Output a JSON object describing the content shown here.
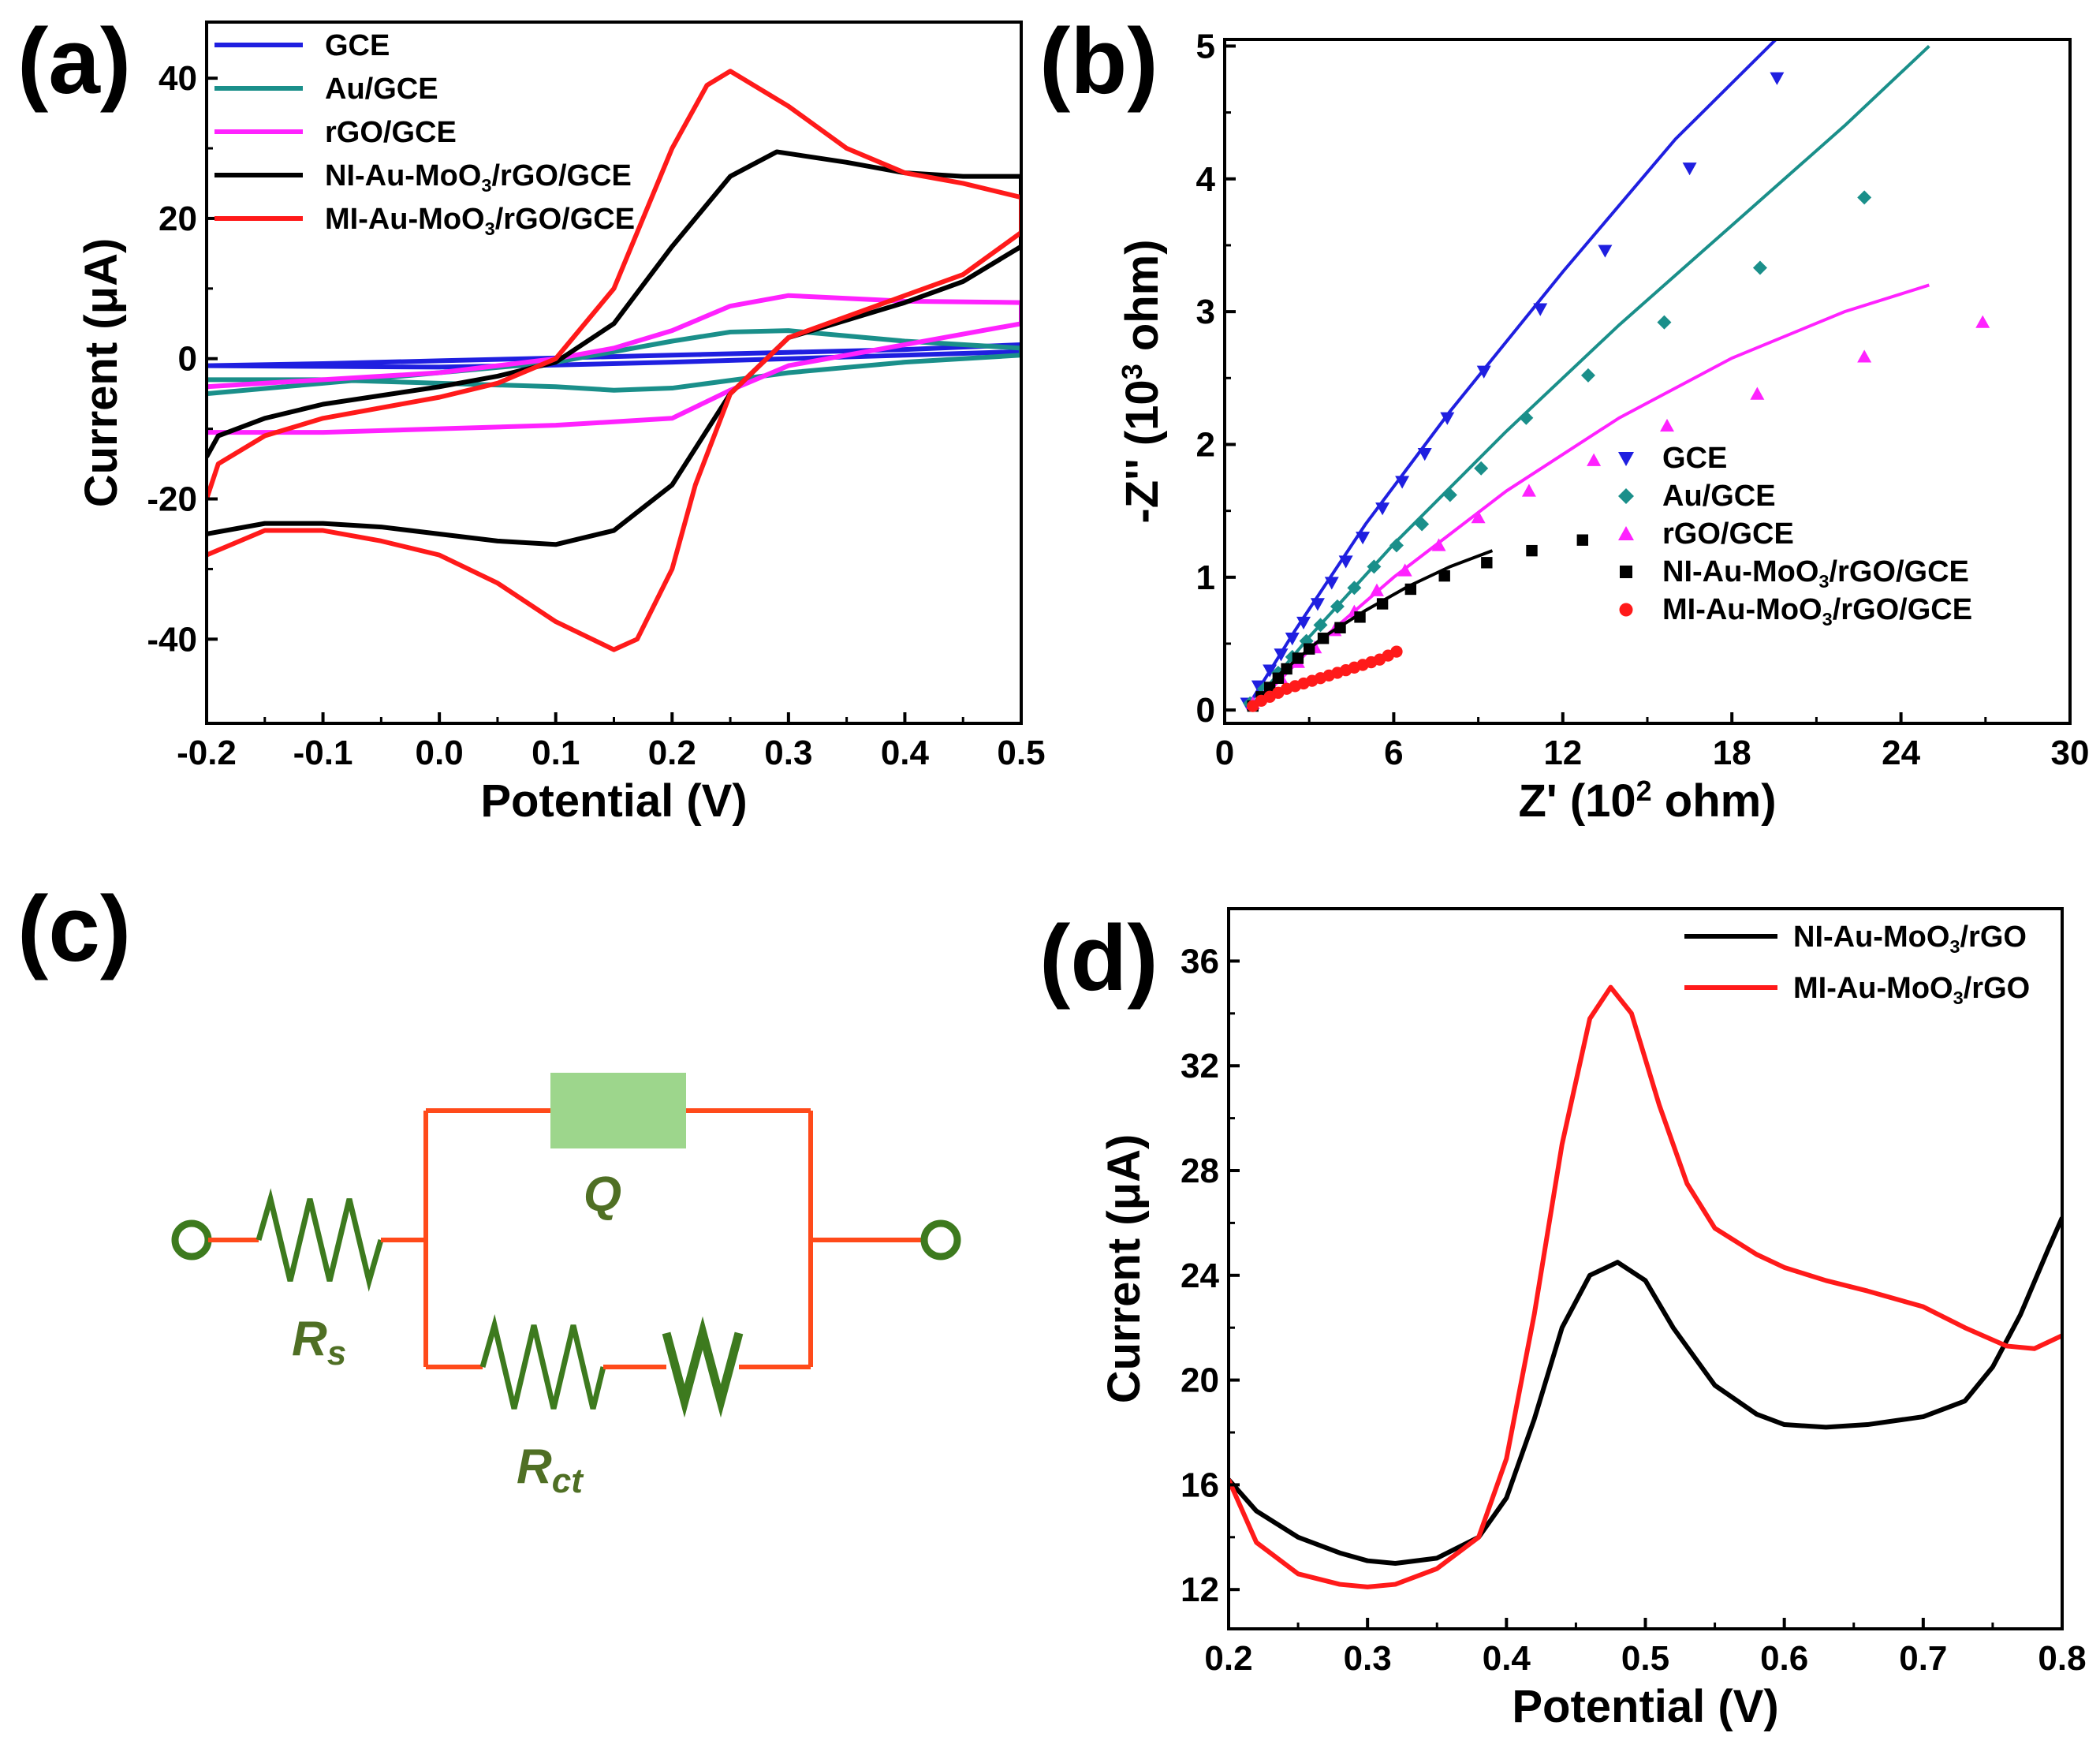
{
  "colors": {
    "GCE": "#1f1fe0",
    "AuGCE": "#1a8f8a",
    "rGOGCE": "#ff22ff",
    "NI": "#000000",
    "MI": "#ff1a1a",
    "wire": "#ff4a1a",
    "component": "#3d7a1e",
    "capacitor": "#9dd68c"
  },
  "panels": {
    "a": {
      "label": "(a)"
    },
    "b": {
      "label": "(b)"
    },
    "c": {
      "label": "(c)"
    },
    "d": {
      "label": "(d)"
    }
  },
  "chart_data": [
    {
      "id": "a",
      "type": "line",
      "title": "",
      "xlabel": "Potential (V)",
      "ylabel": "Current (μA)",
      "xlim": [
        -0.2,
        0.5
      ],
      "ylim": [
        -52,
        48
      ],
      "xticks": [
        -0.2,
        -0.1,
        0.0,
        0.1,
        0.2,
        0.3,
        0.4,
        0.5
      ],
      "xticklabels": [
        "-0.2",
        "-0.1",
        "0.0",
        "0.1",
        "0.2",
        "0.3",
        "0.4",
        "0.5"
      ],
      "yticks": [
        -40,
        -20,
        0,
        20,
        40
      ],
      "yticklabels": [
        "-40",
        "-20",
        "0",
        "20",
        "40"
      ],
      "legend_position": "top-left",
      "series": [
        {
          "name": "GCE",
          "color_key": "GCE",
          "legend": [
            "GCE",
            "",
            ""
          ],
          "x": [
            -0.2,
            -0.1,
            0.0,
            0.1,
            0.2,
            0.3,
            0.4,
            0.5,
            0.5,
            0.4,
            0.3,
            0.2,
            0.1,
            0.0,
            -0.1,
            -0.2
          ],
          "y": [
            -1.0,
            -0.7,
            -0.3,
            0.1,
            0.5,
            0.9,
            1.3,
            2.0,
            1.0,
            0.5,
            0.0,
            -0.5,
            -0.9,
            -1.2,
            -1.1,
            -1.0
          ]
        },
        {
          "name": "Au/GCE",
          "color_key": "AuGCE",
          "legend": [
            "Au/GCE",
            "",
            ""
          ],
          "x": [
            -0.2,
            -0.1,
            0.0,
            0.1,
            0.2,
            0.25,
            0.3,
            0.4,
            0.5,
            0.5,
            0.4,
            0.3,
            0.2,
            0.15,
            0.1,
            0.0,
            -0.1,
            -0.2
          ],
          "y": [
            -5.0,
            -3.5,
            -2.0,
            -0.5,
            2.5,
            3.8,
            4.0,
            2.5,
            1.5,
            0.5,
            -0.5,
            -2.0,
            -4.2,
            -4.5,
            -4.0,
            -3.5,
            -3.0,
            -3.0
          ]
        },
        {
          "name": "rGO/GCE",
          "color_key": "rGOGCE",
          "legend": [
            "rGO/GCE",
            "",
            ""
          ],
          "x": [
            -0.2,
            -0.1,
            0.0,
            0.05,
            0.1,
            0.15,
            0.2,
            0.25,
            0.3,
            0.4,
            0.5,
            0.5,
            0.4,
            0.3,
            0.25,
            0.2,
            0.1,
            0.0,
            -0.1,
            -0.2
          ],
          "y": [
            -4.0,
            -3.0,
            -2.0,
            -1.0,
            0.0,
            1.5,
            4.0,
            7.5,
            9.0,
            8.2,
            8.0,
            5.0,
            2.0,
            -1.0,
            -4.5,
            -8.5,
            -9.5,
            -10.0,
            -10.5,
            -10.5
          ]
        },
        {
          "name": "NI-Au-MoO3/rGO/GCE",
          "color_key": "NI",
          "legend": [
            "NI-Au-MoO",
            "3",
            "/rGO/GCE"
          ],
          "x": [
            -0.2,
            -0.19,
            -0.15,
            -0.1,
            0.0,
            0.05,
            0.1,
            0.15,
            0.2,
            0.25,
            0.29,
            0.35,
            0.4,
            0.45,
            0.5,
            0.5,
            0.45,
            0.4,
            0.3,
            0.25,
            0.2,
            0.15,
            0.1,
            0.05,
            0.0,
            -0.05,
            -0.1,
            -0.15,
            -0.2
          ],
          "y": [
            -14.0,
            -11.0,
            -8.5,
            -6.5,
            -4.0,
            -2.5,
            -0.5,
            5.0,
            16.0,
            26.0,
            29.5,
            28.0,
            26.5,
            26.0,
            26.0,
            16.0,
            11.0,
            8.0,
            3.0,
            -5.0,
            -18.0,
            -24.5,
            -26.5,
            -26.0,
            -25.0,
            -24.0,
            -23.5,
            -23.5,
            -25.0
          ]
        },
        {
          "name": "MI-Au-MoO3/rGO/GCE",
          "color_key": "MI",
          "legend": [
            "MI-Au-MoO",
            "3",
            "/rGO/GCE"
          ],
          "x": [
            -0.2,
            -0.19,
            -0.15,
            -0.1,
            0.0,
            0.05,
            0.1,
            0.15,
            0.2,
            0.23,
            0.25,
            0.3,
            0.35,
            0.4,
            0.45,
            0.5,
            0.5,
            0.45,
            0.4,
            0.3,
            0.25,
            0.22,
            0.2,
            0.17,
            0.15,
            0.1,
            0.05,
            0.0,
            -0.05,
            -0.1,
            -0.15,
            -0.2
          ],
          "y": [
            -20.0,
            -15.0,
            -11.0,
            -8.5,
            -5.5,
            -3.5,
            0.0,
            10.0,
            30.0,
            39.0,
            41.0,
            36.0,
            30.0,
            26.5,
            25.0,
            23.0,
            18.0,
            12.0,
            9.0,
            3.0,
            -5.0,
            -18.0,
            -30.0,
            -40.0,
            -41.5,
            -37.5,
            -32.0,
            -28.0,
            -26.0,
            -24.5,
            -24.5,
            -28.0
          ]
        }
      ]
    },
    {
      "id": "b",
      "type": "scatter",
      "title": "",
      "xlabel": "Z' (10² ohm)",
      "xlabel_parts": [
        "Z' (10",
        "2",
        " ohm)"
      ],
      "ylabel": "-Z'' (10³ ohm)",
      "ylabel_parts": [
        "-Z'' (10",
        "3",
        " ohm)"
      ],
      "xlim": [
        0,
        30
      ],
      "ylim": [
        -0.1,
        5.05
      ],
      "xticks": [
        0,
        6,
        12,
        18,
        24,
        30
      ],
      "xticklabels": [
        "0",
        "6",
        "12",
        "18",
        "24",
        "30"
      ],
      "yticks": [
        0,
        1,
        2,
        3,
        4,
        5
      ],
      "yticklabels": [
        "0",
        "1",
        "2",
        "3",
        "4",
        "5"
      ],
      "legend_position": "center-right",
      "series": [
        {
          "name": "GCE",
          "color_key": "GCE",
          "marker": "triangle-down",
          "legend": [
            "GCE",
            "",
            ""
          ],
          "x": [
            0.8,
            1.2,
            1.6,
            2.0,
            2.4,
            2.8,
            3.3,
            3.8,
            4.3,
            4.9,
            5.6,
            6.3,
            7.1,
            7.9,
            9.2,
            11.2,
            13.5,
            16.5,
            19.6
          ],
          "y": [
            0.05,
            0.18,
            0.3,
            0.42,
            0.54,
            0.66,
            0.8,
            0.96,
            1.12,
            1.3,
            1.52,
            1.72,
            1.93,
            2.2,
            2.55,
            3.02,
            3.46,
            4.08,
            4.76
          ],
          "fit_x": [
            0.8,
            2.5,
            5.0,
            8.0,
            12.0,
            16.0,
            19.8
          ],
          "fit_y": [
            0.02,
            0.6,
            1.4,
            2.25,
            3.3,
            4.3,
            5.1
          ]
        },
        {
          "name": "Au/GCE",
          "color_key": "AuGCE",
          "marker": "diamond",
          "legend": [
            "Au/GCE",
            "",
            ""
          ],
          "x": [
            0.9,
            1.4,
            1.9,
            2.4,
            2.9,
            3.4,
            4.0,
            4.6,
            5.3,
            6.1,
            7.0,
            8.0,
            9.1,
            10.7,
            12.9,
            15.6,
            19.0,
            22.7
          ],
          "y": [
            0.05,
            0.16,
            0.28,
            0.4,
            0.52,
            0.64,
            0.78,
            0.92,
            1.08,
            1.24,
            1.4,
            1.62,
            1.82,
            2.2,
            2.52,
            2.92,
            3.33,
            3.86
          ],
          "fit_x": [
            0.9,
            3.0,
            6.0,
            10.0,
            14.0,
            18.0,
            22.0,
            25.0
          ],
          "fit_y": [
            0.02,
            0.55,
            1.25,
            2.1,
            2.9,
            3.65,
            4.4,
            5.0
          ]
        },
        {
          "name": "rGO/GCE",
          "color_key": "rGOGCE",
          "marker": "triangle-up",
          "legend": [
            "rGO/GCE",
            "",
            ""
          ],
          "x": [
            1.0,
            1.5,
            2.0,
            2.6,
            3.2,
            3.9,
            4.6,
            5.4,
            6.4,
            7.6,
            9.0,
            10.8,
            13.1,
            15.7,
            18.9,
            22.7,
            26.9
          ],
          "y": [
            0.05,
            0.14,
            0.24,
            0.36,
            0.47,
            0.6,
            0.74,
            0.9,
            1.05,
            1.24,
            1.45,
            1.65,
            1.88,
            2.14,
            2.38,
            2.66,
            2.92
          ],
          "fit_x": [
            1.0,
            3.0,
            6.0,
            10.0,
            14.0,
            18.0,
            22.0,
            25.0
          ],
          "fit_y": [
            0.02,
            0.45,
            1.0,
            1.65,
            2.2,
            2.65,
            3.0,
            3.2
          ]
        },
        {
          "name": "NI-Au-MoO3/rGO/GCE",
          "color_key": "NI",
          "marker": "square",
          "legend": [
            "NI-Au-MoO",
            "3",
            "/rGO/GCE"
          ],
          "x": [
            1.0,
            1.3,
            1.6,
            1.9,
            2.2,
            2.6,
            3.0,
            3.5,
            4.1,
            4.8,
            5.6,
            6.6,
            7.8,
            9.3,
            10.9,
            12.7
          ],
          "y": [
            0.03,
            0.1,
            0.17,
            0.24,
            0.31,
            0.39,
            0.46,
            0.54,
            0.62,
            0.7,
            0.8,
            0.91,
            1.01,
            1.11,
            1.2,
            1.28
          ],
          "fit_x": [
            1.0,
            2.0,
            3.5,
            5.0,
            6.5,
            8.0,
            9.5
          ],
          "fit_y": [
            0.02,
            0.28,
            0.55,
            0.75,
            0.93,
            1.08,
            1.2
          ]
        },
        {
          "name": "MI-Au-MoO3/rGO/GCE",
          "color_key": "MI",
          "marker": "circle",
          "legend": [
            "MI-Au-MoO",
            "3",
            "/rGO/GCE"
          ],
          "x": [
            1.0,
            1.3,
            1.6,
            1.9,
            2.2,
            2.5,
            2.8,
            3.1,
            3.4,
            3.7,
            4.0,
            4.3,
            4.6,
            4.9,
            5.2,
            5.5,
            5.8,
            6.1
          ],
          "y": [
            0.03,
            0.07,
            0.1,
            0.13,
            0.16,
            0.18,
            0.2,
            0.22,
            0.24,
            0.26,
            0.28,
            0.3,
            0.32,
            0.34,
            0.36,
            0.38,
            0.41,
            0.44
          ],
          "fit_x": [
            1.0,
            2.0,
            3.0,
            4.0,
            5.0,
            6.1
          ],
          "fit_y": [
            0.02,
            0.13,
            0.21,
            0.28,
            0.35,
            0.43
          ]
        }
      ]
    },
    {
      "id": "d",
      "type": "line",
      "title": "",
      "xlabel": "Potential (V)",
      "ylabel": "Current (μA)",
      "xlim": [
        0.2,
        0.8
      ],
      "ylim": [
        10.5,
        38
      ],
      "xticks": [
        0.2,
        0.3,
        0.4,
        0.5,
        0.6,
        0.7,
        0.8
      ],
      "xticklabels": [
        "0.2",
        "0.3",
        "0.4",
        "0.5",
        "0.6",
        "0.7",
        "0.8"
      ],
      "yticks": [
        12,
        16,
        20,
        24,
        28,
        32,
        36
      ],
      "yticklabels": [
        "12",
        "16",
        "20",
        "24",
        "28",
        "32",
        "36"
      ],
      "legend_position": "top-right",
      "series": [
        {
          "name": "NI-Au-MoO3/rGO",
          "color_key": "NI",
          "legend": [
            "NI-Au-MoO",
            "3",
            "/rGO"
          ],
          "x": [
            0.2,
            0.22,
            0.25,
            0.28,
            0.3,
            0.32,
            0.35,
            0.38,
            0.4,
            0.42,
            0.44,
            0.46,
            0.48,
            0.5,
            0.52,
            0.55,
            0.58,
            0.6,
            0.63,
            0.66,
            0.7,
            0.73,
            0.75,
            0.77,
            0.79,
            0.8
          ],
          "y": [
            16.2,
            15.0,
            14.0,
            13.4,
            13.1,
            13.0,
            13.2,
            14.0,
            15.5,
            18.5,
            22.0,
            24.0,
            24.5,
            23.8,
            22.0,
            19.8,
            18.7,
            18.3,
            18.2,
            18.3,
            18.6,
            19.2,
            20.5,
            22.5,
            25.0,
            26.2
          ]
        },
        {
          "name": "MI-Au-MoO3/rGO",
          "color_key": "MI",
          "legend": [
            "MI-Au-MoO",
            "3",
            "/rGO"
          ],
          "x": [
            0.2,
            0.22,
            0.25,
            0.28,
            0.3,
            0.32,
            0.35,
            0.38,
            0.4,
            0.42,
            0.44,
            0.46,
            0.475,
            0.49,
            0.51,
            0.53,
            0.55,
            0.58,
            0.6,
            0.63,
            0.66,
            0.7,
            0.73,
            0.76,
            0.78,
            0.8
          ],
          "y": [
            16.2,
            13.8,
            12.6,
            12.2,
            12.1,
            12.2,
            12.8,
            14.0,
            17.0,
            22.5,
            29.0,
            33.8,
            35.0,
            34.0,
            30.5,
            27.5,
            25.8,
            24.8,
            24.3,
            23.8,
            23.4,
            22.8,
            22.0,
            21.3,
            21.2,
            21.7
          ]
        }
      ]
    }
  ],
  "circuit": {
    "labels": {
      "Rs_main": "R",
      "Rs_sub": "s",
      "Q": "Q",
      "Rct_main": "R",
      "Rct_sub": "ct"
    }
  }
}
